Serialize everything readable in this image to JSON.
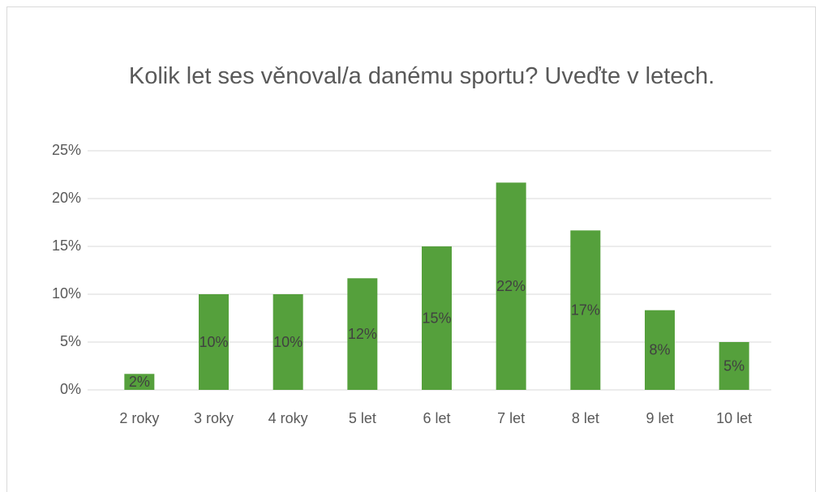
{
  "chart_data": {
    "type": "bar",
    "title": "Kolik let ses věnoval/a danému sportu? Uveďte v letech.",
    "categories": [
      "2 roky",
      "3 roky",
      "4 roky",
      "5 let",
      "6 let",
      "7 let",
      "8 let",
      "9 let",
      "10 let"
    ],
    "values": [
      1.67,
      10,
      10,
      11.67,
      15,
      21.67,
      16.67,
      8.33,
      5
    ],
    "value_labels": [
      "2%",
      "10%",
      "10%",
      "12%",
      "15%",
      "22%",
      "17%",
      "8%",
      "5%"
    ],
    "color": "#55a03c",
    "ylim": [
      0,
      25
    ],
    "yticks": [
      {
        "value": 0,
        "label": "0%"
      },
      {
        "value": 5,
        "label": "5%"
      },
      {
        "value": 10,
        "label": "10%"
      },
      {
        "value": 15,
        "label": "15%"
      },
      {
        "value": 20,
        "label": "20%"
      },
      {
        "value": 25,
        "label": "25%"
      }
    ],
    "grid": true
  }
}
